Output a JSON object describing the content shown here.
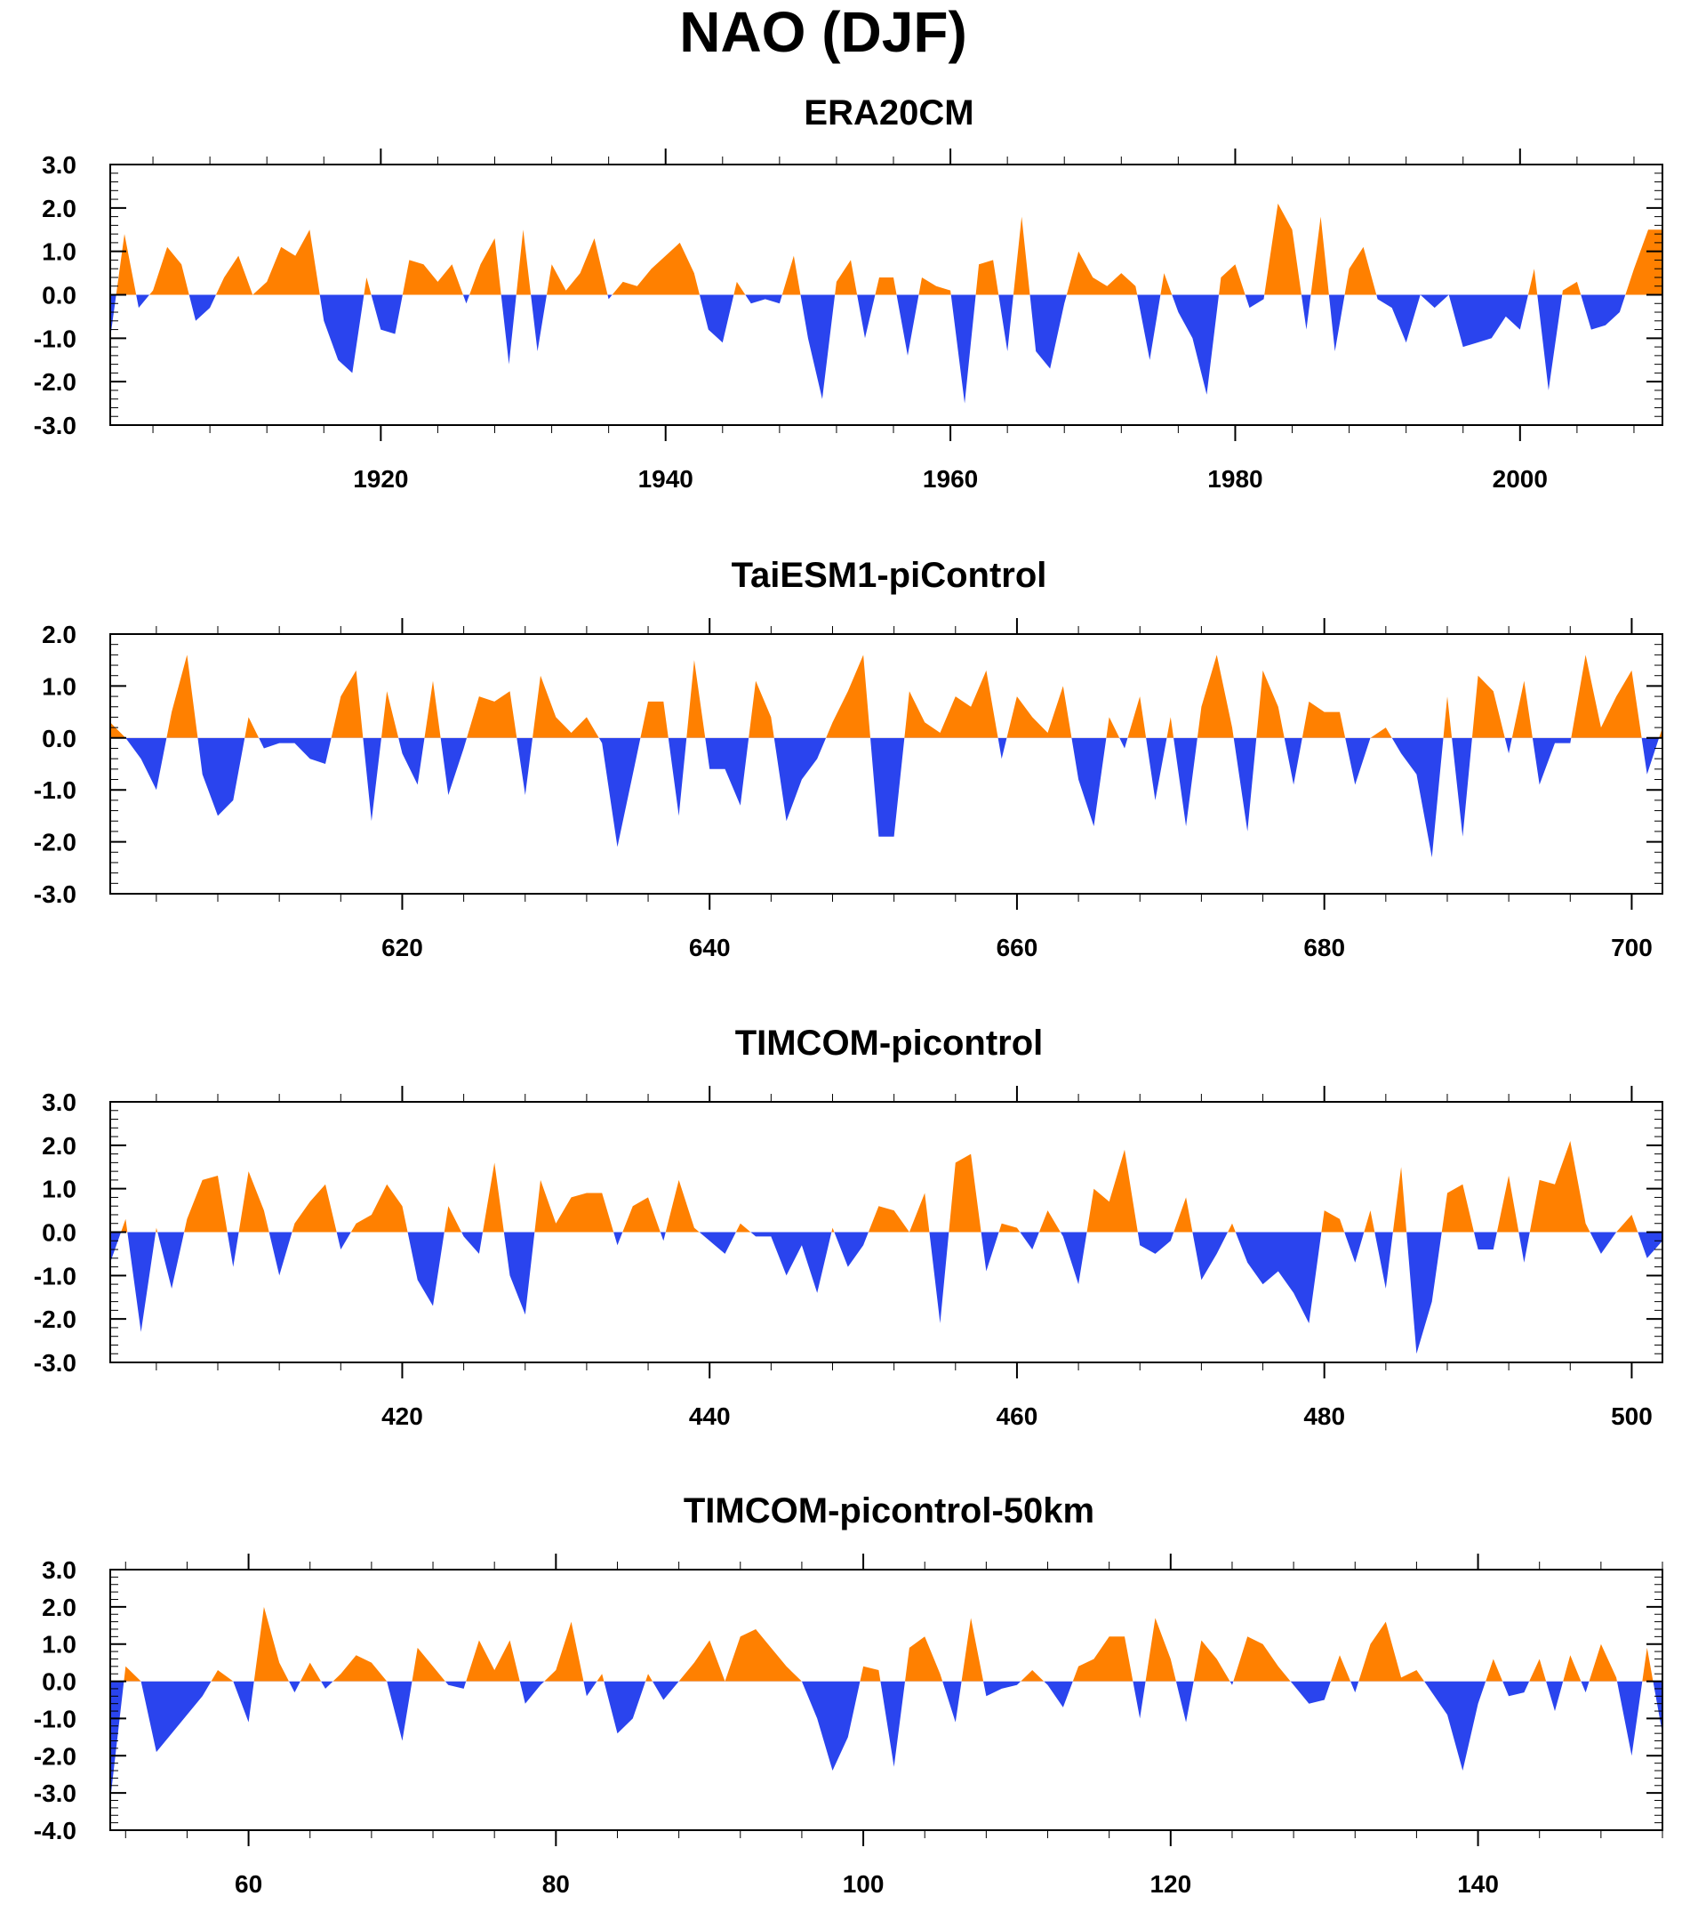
{
  "title": "NAO (DJF)",
  "colors": {
    "positive": "#ff8000",
    "negative": "#2a44ee",
    "axis": "#000000"
  },
  "chart_data": [
    {
      "type": "area",
      "title": "ERA20CM",
      "xlim": [
        1901,
        2010
      ],
      "ylim": [
        -3.0,
        3.0
      ],
      "yticks": [
        "3.0",
        "2.0",
        "1.0",
        "0.0",
        "-1.0",
        "-2.0",
        "-3.0"
      ],
      "xticks": [
        "1920",
        "1940",
        "1960",
        "1980",
        "2000"
      ],
      "x_start": 1901,
      "values": [
        -1.0,
        1.4,
        -0.3,
        0.1,
        1.1,
        0.7,
        -0.6,
        -0.3,
        0.4,
        0.9,
        0.0,
        0.3,
        1.1,
        0.9,
        1.5,
        -0.6,
        -1.5,
        -1.8,
        0.4,
        -0.8,
        -0.9,
        0.8,
        0.7,
        0.3,
        0.7,
        -0.2,
        0.7,
        1.3,
        -1.6,
        1.5,
        -1.3,
        0.7,
        0.1,
        0.5,
        1.3,
        -0.1,
        0.3,
        0.2,
        0.6,
        0.9,
        1.2,
        0.5,
        -0.8,
        -1.1,
        0.3,
        -0.2,
        -0.1,
        -0.2,
        0.9,
        -1.0,
        -2.4,
        0.3,
        0.8,
        -1.0,
        0.4,
        0.4,
        -1.4,
        0.4,
        0.2,
        0.1,
        -2.5,
        0.7,
        0.8,
        -1.3,
        1.8,
        -1.3,
        -1.7,
        -0.2,
        1.0,
        0.4,
        0.2,
        0.5,
        0.2,
        -1.5,
        0.5,
        -0.4,
        -1.0,
        -2.3,
        0.4,
        0.7,
        -0.3,
        -0.1,
        2.1,
        1.5,
        -0.8,
        1.8,
        -1.3,
        0.6,
        1.1,
        -0.1,
        -0.3,
        -1.1,
        0.0,
        -0.3,
        0.0,
        -1.2,
        -1.1,
        -1.0,
        -0.5,
        -0.8,
        0.6,
        -2.2,
        0.1,
        0.3,
        -0.8,
        -0.7,
        -0.4,
        0.6,
        1.5,
        1.5
      ]
    },
    {
      "type": "area",
      "title": "TaiESM1-piControl",
      "xlim": [
        601,
        702
      ],
      "ylim": [
        -3.0,
        2.0
      ],
      "yticks": [
        "2.0",
        "1.0",
        "0.0",
        "-1.0",
        "-2.0",
        "-3.0"
      ],
      "xticks": [
        "620",
        "640",
        "660",
        "680",
        "700"
      ],
      "x_start": 601,
      "values": [
        0.3,
        0.0,
        -0.4,
        -1.0,
        0.5,
        1.6,
        -0.7,
        -1.5,
        -1.2,
        0.4,
        -0.2,
        -0.1,
        -0.1,
        -0.4,
        -0.5,
        0.8,
        1.3,
        -1.6,
        0.9,
        -0.3,
        -0.9,
        1.1,
        -1.1,
        -0.2,
        0.8,
        0.7,
        0.9,
        -1.1,
        1.2,
        0.4,
        0.1,
        0.4,
        -0.1,
        -2.1,
        -0.7,
        0.7,
        0.7,
        -1.5,
        1.5,
        -0.6,
        -0.6,
        -1.3,
        1.1,
        0.4,
        -1.6,
        -0.8,
        -0.4,
        0.3,
        0.9,
        1.6,
        -1.9,
        -1.9,
        0.9,
        0.3,
        0.1,
        0.8,
        0.6,
        1.3,
        -0.4,
        0.8,
        0.4,
        0.1,
        1.0,
        -0.8,
        -1.7,
        0.4,
        -0.2,
        0.8,
        -1.2,
        0.4,
        -1.7,
        0.6,
        1.6,
        0.2,
        -1.8,
        1.3,
        0.6,
        -0.9,
        0.7,
        0.5,
        0.5,
        -0.9,
        0.0,
        0.2,
        -0.3,
        -0.7,
        -2.3,
        0.8,
        -1.9,
        1.2,
        0.9,
        -0.3,
        1.1,
        -0.9,
        -0.1,
        -0.1,
        1.6,
        0.2,
        0.8,
        1.3,
        -0.7,
        0.2
      ]
    },
    {
      "type": "area",
      "title": "TIMCOM-picontrol",
      "xlim": [
        401,
        502
      ],
      "ylim": [
        -3.0,
        3.0
      ],
      "yticks": [
        "3.0",
        "2.0",
        "1.0",
        "0.0",
        "-1.0",
        "-2.0",
        "-3.0"
      ],
      "xticks": [
        "420",
        "440",
        "460",
        "480",
        "500"
      ],
      "x_start": 401,
      "values": [
        -0.7,
        0.3,
        -2.3,
        0.1,
        -1.3,
        0.3,
        1.2,
        1.3,
        -0.8,
        1.4,
        0.5,
        -1.0,
        0.2,
        0.7,
        1.1,
        -0.4,
        0.2,
        0.4,
        1.1,
        0.6,
        -1.1,
        -1.7,
        0.6,
        -0.1,
        -0.5,
        1.6,
        -1.0,
        -1.9,
        1.2,
        0.2,
        0.8,
        0.9,
        0.9,
        -0.3,
        0.6,
        0.8,
        -0.2,
        1.2,
        0.1,
        -0.2,
        -0.5,
        0.2,
        -0.1,
        -0.1,
        -1.0,
        -0.3,
        -1.4,
        0.1,
        -0.8,
        -0.3,
        0.6,
        0.5,
        0.0,
        0.9,
        -2.1,
        1.6,
        1.8,
        -0.9,
        0.2,
        0.1,
        -0.4,
        0.5,
        -0.1,
        -1.2,
        1.0,
        0.7,
        1.9,
        -0.3,
        -0.5,
        -0.2,
        0.8,
        -1.1,
        -0.5,
        0.2,
        -0.7,
        -1.2,
        -0.9,
        -1.4,
        -2.1,
        0.5,
        0.3,
        -0.7,
        0.5,
        -1.3,
        1.5,
        -2.8,
        -1.6,
        0.9,
        1.1,
        -0.4,
        -0.4,
        1.3,
        -0.7,
        1.2,
        1.1,
        2.1,
        0.2,
        -0.5,
        0.0,
        0.4,
        -0.6,
        -0.2
      ]
    },
    {
      "type": "area",
      "title": "TIMCOM-picontrol-50km",
      "xlim": [
        51,
        152
      ],
      "ylim": [
        -4.0,
        3.0
      ],
      "yticks": [
        "3.0",
        "2.0",
        "1.0",
        "0.0",
        "-1.0",
        "-2.0",
        "-3.0",
        "-4.0"
      ],
      "xticks": [
        "60",
        "80",
        "100",
        "120",
        "140"
      ],
      "x_start": 51,
      "values": [
        -3.2,
        0.4,
        0.0,
        -1.9,
        -1.4,
        -0.9,
        -0.4,
        0.3,
        0.0,
        -1.1,
        2.0,
        0.5,
        -0.3,
        0.5,
        -0.2,
        0.2,
        0.7,
        0.5,
        0.0,
        -1.6,
        0.9,
        0.4,
        -0.1,
        -0.2,
        1.1,
        0.3,
        1.1,
        -0.6,
        -0.1,
        0.3,
        1.6,
        -0.4,
        0.2,
        -1.4,
        -1.0,
        0.2,
        -0.5,
        0.0,
        0.5,
        1.1,
        0.0,
        1.2,
        1.4,
        0.9,
        0.4,
        0.0,
        -1.0,
        -2.4,
        -1.5,
        0.4,
        0.3,
        -2.3,
        0.9,
        1.2,
        0.2,
        -1.1,
        1.7,
        -0.4,
        -0.2,
        -0.1,
        0.3,
        -0.1,
        -0.7,
        0.4,
        0.6,
        1.2,
        1.2,
        -1.0,
        1.7,
        0.6,
        -1.1,
        1.1,
        0.6,
        -0.1,
        1.2,
        1.0,
        0.4,
        -0.1,
        -0.6,
        -0.5,
        0.7,
        -0.3,
        1.0,
        1.6,
        0.1,
        0.3,
        -0.3,
        -0.9,
        -2.4,
        -0.6,
        0.6,
        -0.4,
        -0.3,
        0.6,
        -0.8,
        0.7,
        -0.3,
        1.0,
        0.1,
        -2.0,
        0.9,
        -1.4
      ]
    }
  ]
}
